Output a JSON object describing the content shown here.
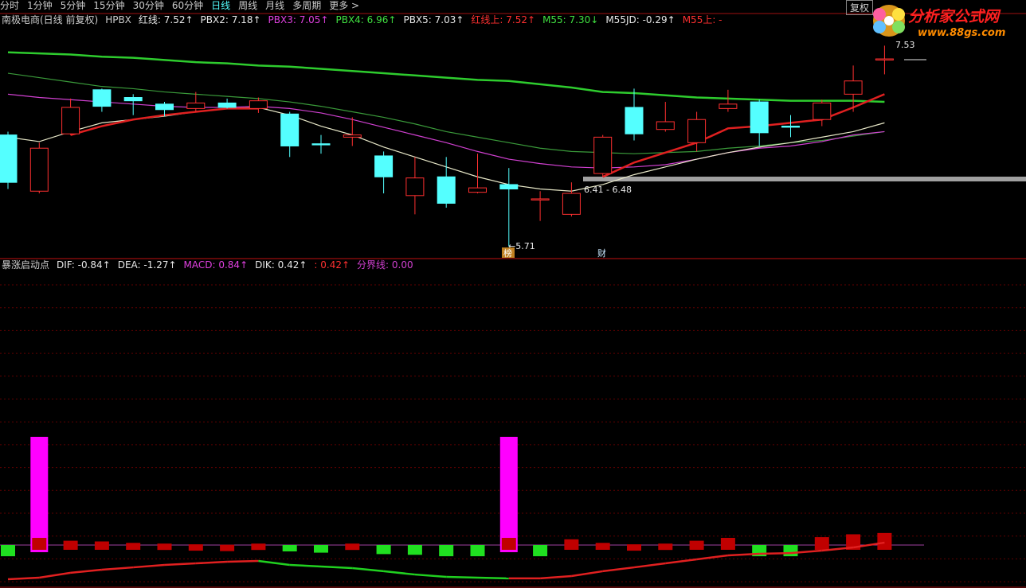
{
  "toolbar": {
    "tabs": [
      "分时",
      "1分钟",
      "5分钟",
      "15分钟",
      "30分钟",
      "60分钟",
      "日线",
      "周线",
      "月线",
      "多周期",
      "更多 >"
    ],
    "selected": 6
  },
  "top_right": {
    "button": "复权",
    "logo": "分析家公式网",
    "url": "www.88gs.com"
  },
  "price_panel": {
    "title": "南极电商(日线 前复权)",
    "indicator": "HPBX",
    "legend": [
      {
        "text": "红线: 7.52↑",
        "color": "#e8e8e8"
      },
      {
        "text": "PBX2: 7.18↑",
        "color": "#e8e8e8"
      },
      {
        "text": "PBX3: 7.05↑",
        "color": "#e040e0"
      },
      {
        "text": "PBX4: 6.96↑",
        "color": "#40e040"
      },
      {
        "text": "PBX5: 7.03↑",
        "color": "#e8e8e8"
      },
      {
        "text": "红线上: 7.52↑",
        "color": "#ff3030"
      },
      {
        "text": "M55: 7.30↓",
        "color": "#40e040"
      },
      {
        "text": "M55JD: -0.29↑",
        "color": "#e8e8e8"
      },
      {
        "text": "M55上: -",
        "color": "#ff3030"
      }
    ],
    "annotations": {
      "high": "7.53",
      "range": "6.41 - 6.48",
      "low": "←5.71",
      "tag1": "榜",
      "tag2": "财"
    },
    "chart": {
      "type": "candlestick",
      "ylim": [
        5.62,
        7.8
      ],
      "open": [
        6.72,
        6.21,
        6.73,
        7.13,
        7.06,
        7.0,
        6.96,
        7.01,
        6.96,
        6.91,
        6.64,
        6.7,
        6.53,
        6.17,
        6.34,
        6.2,
        6.27,
        6.13,
        6.0,
        6.37,
        6.97,
        6.77,
        6.65,
        6.96,
        7.02,
        6.8,
        6.86,
        7.09,
        7.4
      ],
      "high": [
        6.75,
        6.65,
        7.05,
        7.14,
        7.09,
        7.02,
        7.11,
        7.05,
        7.06,
        6.93,
        6.72,
        6.88,
        6.57,
        6.52,
        6.52,
        6.55,
        6.42,
        6.21,
        6.29,
        6.72,
        7.14,
        7.02,
        6.93,
        7.13,
        7.04,
        6.9,
        7.04,
        7.35,
        7.53
      ],
      "low": [
        6.23,
        6.19,
        6.72,
        6.93,
        6.9,
        6.89,
        6.93,
        6.96,
        6.92,
        6.52,
        6.55,
        6.62,
        6.19,
        6.0,
        6.06,
        6.19,
        5.71,
        5.94,
        5.98,
        6.34,
        6.67,
        6.75,
        6.57,
        6.93,
        6.62,
        6.7,
        6.8,
        6.93,
        7.27
      ],
      "close": [
        6.29,
        6.6,
        6.97,
        6.98,
        7.03,
        6.95,
        7.01,
        6.97,
        7.03,
        6.62,
        6.63,
        6.72,
        6.34,
        6.33,
        6.1,
        6.24,
        6.23,
        6.14,
        6.19,
        6.7,
        6.73,
        6.84,
        6.86,
        7.0,
        6.74,
        6.79,
        7.01,
        7.21,
        7.41
      ],
      "up_color": "#ff3030",
      "down_color": "#54ffff",
      "lines": [
        {
          "color": "#2ecc2e",
          "thick": true,
          "values": [
            7.47,
            7.46,
            7.45,
            7.43,
            7.42,
            7.4,
            7.38,
            7.37,
            7.35,
            7.34,
            7.32,
            7.3,
            7.28,
            7.26,
            7.24,
            7.22,
            7.21,
            7.18,
            7.15,
            7.11,
            7.1,
            7.08,
            7.06,
            7.05,
            7.04,
            7.03,
            7.03,
            7.03,
            7.02
          ]
        },
        {
          "color": "#3a9a3a",
          "thick": false,
          "values": [
            7.28,
            7.24,
            7.2,
            7.16,
            7.14,
            7.11,
            7.09,
            7.07,
            7.05,
            7.02,
            6.98,
            6.93,
            6.88,
            6.82,
            6.75,
            6.7,
            6.65,
            6.6,
            6.57,
            6.56,
            6.55,
            6.56,
            6.57,
            6.6,
            6.62,
            6.65,
            6.67,
            6.71,
            6.75
          ]
        },
        {
          "color": "#d040d0",
          "thick": false,
          "values": [
            7.09,
            7.06,
            7.04,
            7.02,
            7.0,
            6.98,
            6.97,
            6.97,
            6.98,
            6.96,
            6.92,
            6.86,
            6.79,
            6.72,
            6.65,
            6.57,
            6.5,
            6.46,
            6.43,
            6.42,
            6.43,
            6.45,
            6.5,
            6.56,
            6.6,
            6.62,
            6.66,
            6.72,
            6.75
          ]
        },
        {
          "color": "#e8e8c8",
          "thick": false,
          "values": [
            6.7,
            6.66,
            6.75,
            6.83,
            6.86,
            6.89,
            6.93,
            6.96,
            6.97,
            6.9,
            6.8,
            6.72,
            6.61,
            6.52,
            6.43,
            6.34,
            6.27,
            6.23,
            6.21,
            6.27,
            6.36,
            6.43,
            6.5,
            6.56,
            6.61,
            6.65,
            6.7,
            6.75,
            6.83
          ]
        },
        {
          "color": "#e02020",
          "thick": true,
          "values": [
            null,
            null,
            6.72,
            6.8,
            6.86,
            6.9,
            6.93,
            6.96,
            6.96,
            null,
            null,
            null,
            null,
            null,
            null,
            null,
            null,
            null,
            null,
            6.34,
            6.47,
            6.56,
            6.65,
            6.78,
            6.8,
            6.83,
            6.86,
            6.97,
            7.09
          ]
        }
      ]
    }
  },
  "macd_panel": {
    "title": "暴涨启动点",
    "legend": [
      {
        "text": "DIF: -0.84↑",
        "color": "#e8e8e8"
      },
      {
        "text": "DEA: -1.27↑",
        "color": "#e8e8e8"
      },
      {
        "text": "MACD: 0.84↑",
        "color": "#e040e0"
      },
      {
        "text": "DIK: 0.42↑",
        "color": "#e8e8e8"
      },
      {
        "text": ": 0.42↑",
        "color": "#ff3030"
      },
      {
        "text": "分界线: 0.00",
        "color": "#d040d0"
      }
    ],
    "chart": {
      "type": "histogram",
      "ylim": [
        -2.89,
        19.17
      ],
      "values": [
        -0.45,
        0.5,
        0.3,
        0.25,
        0.15,
        0.1,
        0.05,
        0.02,
        0.1,
        -0.05,
        -0.2,
        0.1,
        -0.3,
        -0.35,
        -0.45,
        -0.45,
        0.5,
        -0.45,
        0.4,
        0.15,
        0.05,
        0.1,
        0.3,
        0.5,
        -0.45,
        -0.45,
        0.55,
        0.75,
        0.84
      ],
      "line": [
        -2.39,
        -2.28,
        -1.94,
        -1.72,
        -1.56,
        -1.39,
        -1.28,
        -1.17,
        -1.11,
        -1.39,
        -1.5,
        -1.61,
        -1.83,
        -2.06,
        -2.22,
        -2.28,
        -2.33,
        -2.33,
        -2.17,
        -1.83,
        -1.56,
        -1.28,
        -1.0,
        -0.72,
        -0.61,
        -0.56,
        -0.39,
        -0.17,
        0.17
      ],
      "signals": [
        false,
        true,
        false,
        false,
        false,
        false,
        false,
        false,
        false,
        false,
        false,
        false,
        false,
        false,
        false,
        false,
        true,
        false,
        false,
        false,
        false,
        false,
        false,
        false,
        false,
        false,
        false,
        false,
        false
      ],
      "up_color": "#c00000",
      "down_color": "#20e020",
      "signal_color": "#ff00ff"
    }
  }
}
